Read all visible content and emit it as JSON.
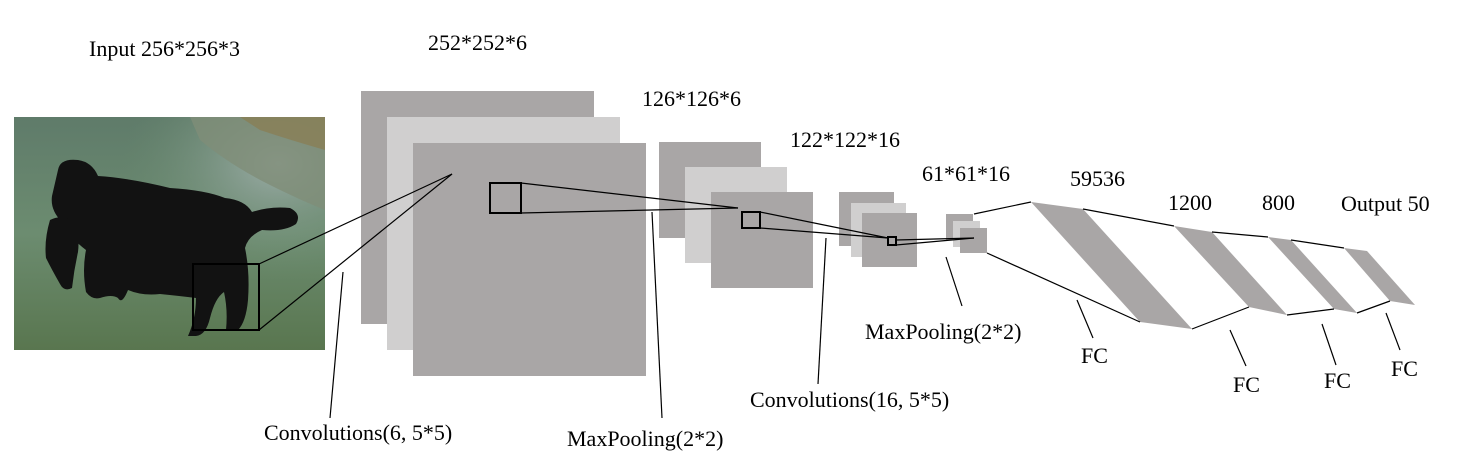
{
  "diagram": {
    "input_label": "Input 256*256*3",
    "stages": {
      "conv1_dims": "252*252*6",
      "pool1_dims": "126*126*6",
      "conv2_dims": "122*122*16",
      "pool2_dims": "61*61*16",
      "flatten_dims": "59536",
      "fc1_dims": "1200",
      "fc2_dims": "800",
      "output_label": "Output 50"
    },
    "operations": {
      "conv1": "Convolutions(6, 5*5)",
      "pool1": "MaxPooling(2*2)",
      "conv2": "Convolutions(16, 5*5)",
      "pool2": "MaxPooling(2*2)",
      "fc1": "FC",
      "fc2": "FC",
      "fc3": "FC",
      "fc4": "FC"
    },
    "colors": {
      "feature_map_dark": "#a9a6a6",
      "feature_map_light": "#d0cfcf"
    }
  }
}
